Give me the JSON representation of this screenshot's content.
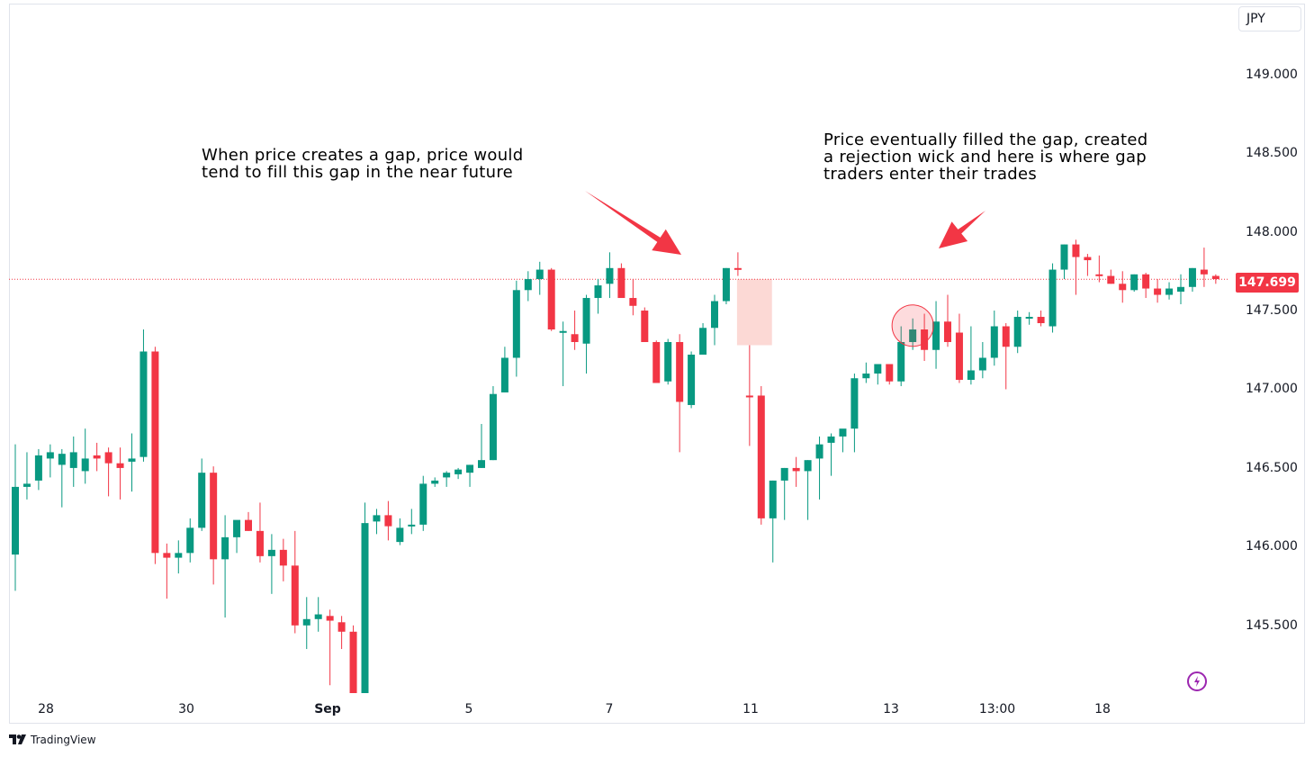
{
  "currency": "JPY",
  "last_price": "147.699",
  "price_ticks": [
    "149.000",
    "148.500",
    "148.000",
    "147.500",
    "147.000",
    "146.500",
    "146.000",
    "145.500"
  ],
  "time_ticks": [
    "28",
    "30",
    "Sep",
    "5",
    "7",
    "11",
    "13",
    "13:00",
    "18"
  ],
  "annotations": {
    "left": "When price creates a gap, price would\ntend to fill this gap in the near future",
    "right": "Price eventually filled the gap, created\na rejection wick and here is where gap\ntraders enter their trades"
  },
  "branding": "TradingView",
  "colors": {
    "up": "#089981",
    "down": "#f23645",
    "gap_zone": "#fcd9d5",
    "marker": "#f23645"
  },
  "chart_data": {
    "type": "candlestick",
    "y_axis": {
      "ylim": [
        145.07,
        149.45
      ],
      "ticks": [
        149.0,
        148.5,
        148.0,
        147.5,
        147.0,
        146.5,
        146.0,
        145.5
      ]
    },
    "last_price": 147.699,
    "candles": [
      {
        "o": 145.95,
        "h": 146.65,
        "l": 145.72,
        "c": 146.38
      },
      {
        "o": 146.38,
        "h": 146.6,
        "l": 146.3,
        "c": 146.4
      },
      {
        "o": 146.42,
        "h": 146.62,
        "l": 146.36,
        "c": 146.58
      },
      {
        "o": 146.56,
        "h": 146.65,
        "l": 146.44,
        "c": 146.6
      },
      {
        "o": 146.52,
        "h": 146.62,
        "l": 146.25,
        "c": 146.59
      },
      {
        "o": 146.5,
        "h": 146.7,
        "l": 146.38,
        "c": 146.6
      },
      {
        "o": 146.48,
        "h": 146.75,
        "l": 146.4,
        "c": 146.56
      },
      {
        "o": 146.58,
        "h": 146.66,
        "l": 146.48,
        "c": 146.56
      },
      {
        "o": 146.6,
        "h": 146.63,
        "l": 146.32,
        "c": 146.53
      },
      {
        "o": 146.53,
        "h": 146.63,
        "l": 146.3,
        "c": 146.5
      },
      {
        "o": 146.54,
        "h": 146.72,
        "l": 146.35,
        "c": 146.56
      },
      {
        "o": 146.57,
        "h": 147.38,
        "l": 146.54,
        "c": 147.24
      },
      {
        "o": 147.24,
        "h": 147.27,
        "l": 145.89,
        "c": 145.96
      },
      {
        "o": 145.96,
        "h": 146.02,
        "l": 145.67,
        "c": 145.93
      },
      {
        "o": 145.93,
        "h": 146.04,
        "l": 145.83,
        "c": 145.96
      },
      {
        "o": 145.96,
        "h": 146.18,
        "l": 145.9,
        "c": 146.12
      },
      {
        "o": 146.12,
        "h": 146.56,
        "l": 146.1,
        "c": 146.47
      },
      {
        "o": 146.47,
        "h": 146.51,
        "l": 145.76,
        "c": 145.92
      },
      {
        "o": 145.92,
        "h": 146.2,
        "l": 145.55,
        "c": 146.06
      },
      {
        "o": 146.06,
        "h": 146.15,
        "l": 145.96,
        "c": 146.17
      },
      {
        "o": 146.17,
        "h": 146.22,
        "l": 146.1,
        "c": 146.1
      },
      {
        "o": 146.1,
        "h": 146.28,
        "l": 145.9,
        "c": 145.94
      },
      {
        "o": 145.94,
        "h": 146.08,
        "l": 145.7,
        "c": 145.98
      },
      {
        "o": 145.98,
        "h": 146.05,
        "l": 145.78,
        "c": 145.88
      },
      {
        "o": 145.88,
        "h": 146.1,
        "l": 145.45,
        "c": 145.5
      },
      {
        "o": 145.5,
        "h": 145.68,
        "l": 145.35,
        "c": 145.54
      },
      {
        "o": 145.54,
        "h": 145.68,
        "l": 145.46,
        "c": 145.57
      },
      {
        "o": 145.56,
        "h": 145.6,
        "l": 145.12,
        "c": 145.53
      },
      {
        "o": 145.52,
        "h": 145.56,
        "l": 145.35,
        "c": 145.46
      },
      {
        "o": 145.46,
        "h": 145.5,
        "l": 145.0,
        "c": 145.0
      },
      {
        "o": 145.0,
        "h": 146.28,
        "l": 145.0,
        "c": 146.15
      },
      {
        "o": 146.16,
        "h": 146.24,
        "l": 146.08,
        "c": 146.2
      },
      {
        "o": 146.2,
        "h": 146.29,
        "l": 146.04,
        "c": 146.13
      },
      {
        "o": 146.03,
        "h": 146.18,
        "l": 146.01,
        "c": 146.12
      },
      {
        "o": 146.13,
        "h": 146.24,
        "l": 146.08,
        "c": 146.14
      },
      {
        "o": 146.14,
        "h": 146.45,
        "l": 146.1,
        "c": 146.4
      },
      {
        "o": 146.4,
        "h": 146.44,
        "l": 146.38,
        "c": 146.42
      },
      {
        "o": 146.44,
        "h": 146.48,
        "l": 146.38,
        "c": 146.47
      },
      {
        "o": 146.46,
        "h": 146.5,
        "l": 146.43,
        "c": 146.49
      },
      {
        "o": 146.47,
        "h": 146.52,
        "l": 146.38,
        "c": 146.52
      },
      {
        "o": 146.5,
        "h": 146.78,
        "l": 146.5,
        "c": 146.55
      },
      {
        "o": 146.55,
        "h": 147.02,
        "l": 146.55,
        "c": 146.97
      },
      {
        "o": 146.98,
        "h": 147.27,
        "l": 146.98,
        "c": 147.2
      },
      {
        "o": 147.2,
        "h": 147.69,
        "l": 147.08,
        "c": 147.63
      },
      {
        "o": 147.63,
        "h": 147.75,
        "l": 147.56,
        "c": 147.7
      },
      {
        "o": 147.7,
        "h": 147.81,
        "l": 147.6,
        "c": 147.76
      },
      {
        "o": 147.76,
        "h": 147.77,
        "l": 147.37,
        "c": 147.38
      },
      {
        "o": 147.37,
        "h": 147.43,
        "l": 147.02,
        "c": 147.37
      },
      {
        "o": 147.35,
        "h": 147.5,
        "l": 147.25,
        "c": 147.3
      },
      {
        "o": 147.29,
        "h": 147.6,
        "l": 147.1,
        "c": 147.58
      },
      {
        "o": 147.58,
        "h": 147.7,
        "l": 147.48,
        "c": 147.66
      },
      {
        "o": 147.67,
        "h": 147.87,
        "l": 147.58,
        "c": 147.77
      },
      {
        "o": 147.77,
        "h": 147.8,
        "l": 147.6,
        "c": 147.58
      },
      {
        "o": 147.58,
        "h": 147.7,
        "l": 147.47,
        "c": 147.53
      },
      {
        "o": 147.5,
        "h": 147.52,
        "l": 147.3,
        "c": 147.3
      },
      {
        "o": 147.3,
        "h": 147.31,
        "l": 147.05,
        "c": 147.04
      },
      {
        "o": 147.05,
        "h": 147.32,
        "l": 147.03,
        "c": 147.3
      },
      {
        "o": 147.3,
        "h": 147.35,
        "l": 146.6,
        "c": 146.92
      },
      {
        "o": 146.9,
        "h": 147.24,
        "l": 146.88,
        "c": 147.22
      },
      {
        "o": 147.22,
        "h": 147.42,
        "l": 147.22,
        "c": 147.39
      },
      {
        "o": 147.39,
        "h": 147.6,
        "l": 147.28,
        "c": 147.56
      },
      {
        "o": 147.56,
        "h": 147.77,
        "l": 147.54,
        "c": 147.77
      },
      {
        "o": 147.77,
        "h": 147.87,
        "l": 147.72,
        "c": 147.76
      },
      {
        "o": 146.96,
        "h": 147.28,
        "l": 146.64,
        "c": 146.95
      },
      {
        "o": 146.96,
        "h": 147.02,
        "l": 146.14,
        "c": 146.18
      },
      {
        "o": 146.18,
        "h": 146.42,
        "l": 145.9,
        "c": 146.42
      },
      {
        "o": 146.42,
        "h": 146.5,
        "l": 146.17,
        "c": 146.5
      },
      {
        "o": 146.5,
        "h": 146.57,
        "l": 146.38,
        "c": 146.48
      },
      {
        "o": 146.48,
        "h": 146.55,
        "l": 146.17,
        "c": 146.55
      },
      {
        "o": 146.56,
        "h": 146.7,
        "l": 146.3,
        "c": 146.65
      },
      {
        "o": 146.66,
        "h": 146.72,
        "l": 146.45,
        "c": 146.7
      },
      {
        "o": 146.7,
        "h": 146.73,
        "l": 146.6,
        "c": 146.75
      },
      {
        "o": 146.75,
        "h": 147.1,
        "l": 146.6,
        "c": 147.07
      },
      {
        "o": 147.07,
        "h": 147.17,
        "l": 147.04,
        "c": 147.1
      },
      {
        "o": 147.1,
        "h": 147.16,
        "l": 147.03,
        "c": 147.16
      },
      {
        "o": 147.16,
        "h": 147.16,
        "l": 147.03,
        "c": 147.05
      },
      {
        "o": 147.05,
        "h": 147.4,
        "l": 147.02,
        "c": 147.3
      },
      {
        "o": 147.3,
        "h": 147.45,
        "l": 147.25,
        "c": 147.38
      },
      {
        "o": 147.38,
        "h": 147.48,
        "l": 147.18,
        "c": 147.25
      },
      {
        "o": 147.25,
        "h": 147.56,
        "l": 147.13,
        "c": 147.43
      },
      {
        "o": 147.43,
        "h": 147.6,
        "l": 147.27,
        "c": 147.3
      },
      {
        "o": 147.36,
        "h": 147.48,
        "l": 147.04,
        "c": 147.06
      },
      {
        "o": 147.06,
        "h": 147.4,
        "l": 147.03,
        "c": 147.12
      },
      {
        "o": 147.12,
        "h": 147.3,
        "l": 147.07,
        "c": 147.2
      },
      {
        "o": 147.2,
        "h": 147.5,
        "l": 147.15,
        "c": 147.4
      },
      {
        "o": 147.4,
        "h": 147.42,
        "l": 147.0,
        "c": 147.27
      },
      {
        "o": 147.27,
        "h": 147.5,
        "l": 147.23,
        "c": 147.46
      },
      {
        "o": 147.45,
        "h": 147.49,
        "l": 147.41,
        "c": 147.46
      },
      {
        "o": 147.46,
        "h": 147.5,
        "l": 147.4,
        "c": 147.42
      },
      {
        "o": 147.4,
        "h": 147.8,
        "l": 147.36,
        "c": 147.76
      },
      {
        "o": 147.76,
        "h": 147.92,
        "l": 147.7,
        "c": 147.92
      },
      {
        "o": 147.92,
        "h": 147.95,
        "l": 147.6,
        "c": 147.84
      },
      {
        "o": 147.84,
        "h": 147.86,
        "l": 147.72,
        "c": 147.82
      },
      {
        "o": 147.73,
        "h": 147.85,
        "l": 147.68,
        "c": 147.72
      },
      {
        "o": 147.72,
        "h": 147.76,
        "l": 147.67,
        "c": 147.67
      },
      {
        "o": 147.67,
        "h": 147.75,
        "l": 147.55,
        "c": 147.63
      },
      {
        "o": 147.63,
        "h": 147.73,
        "l": 147.62,
        "c": 147.73
      },
      {
        "o": 147.73,
        "h": 147.74,
        "l": 147.58,
        "c": 147.64
      },
      {
        "o": 147.64,
        "h": 147.7,
        "l": 147.55,
        "c": 147.6
      },
      {
        "o": 147.6,
        "h": 147.68,
        "l": 147.57,
        "c": 147.64
      },
      {
        "o": 147.62,
        "h": 147.73,
        "l": 147.54,
        "c": 147.65
      },
      {
        "o": 147.65,
        "h": 147.77,
        "l": 147.62,
        "c": 147.77
      },
      {
        "o": 147.76,
        "h": 147.9,
        "l": 147.65,
        "c": 147.73
      },
      {
        "o": 147.72,
        "h": 147.73,
        "l": 147.67,
        "c": 147.7
      }
    ],
    "gap_zone": {
      "from_candle": 62,
      "to_candle": 65,
      "low": 147.28,
      "high": 147.7
    },
    "marker_candle": 77
  }
}
